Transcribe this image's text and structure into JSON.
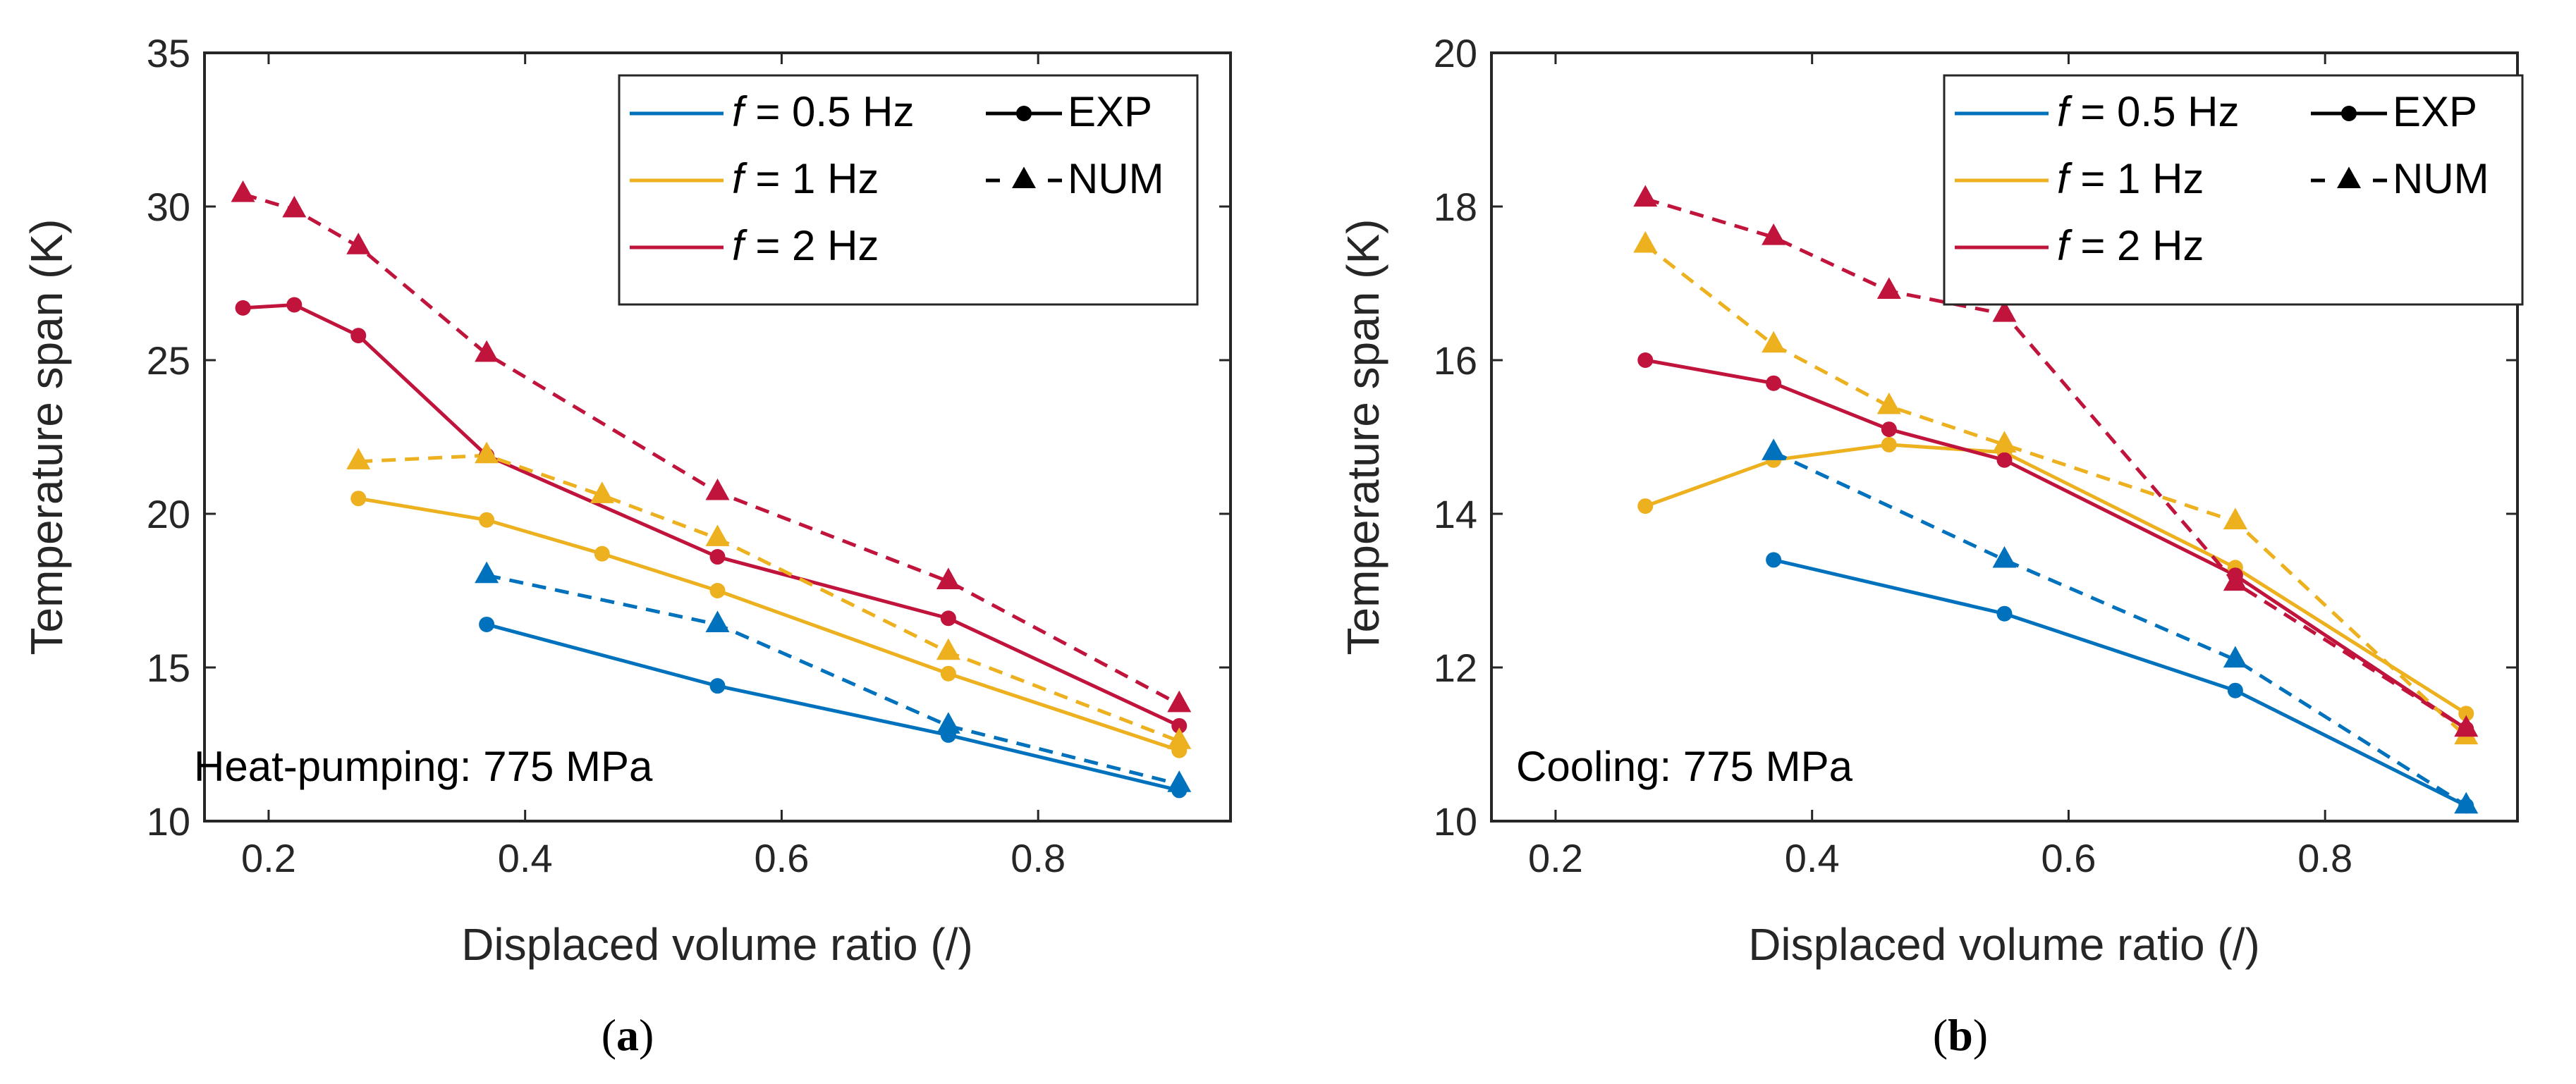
{
  "chart_data": [
    {
      "type": "line",
      "panel_label": "(a)",
      "panel_letter": "a",
      "annotation": "Heat-pumping: 775 MPa",
      "xlabel": "Displaced volume ratio (/)",
      "ylabel": "Temperature span (K)",
      "xlim": [
        0.15,
        0.95
      ],
      "ylim": [
        10,
        35
      ],
      "xticks": [
        "0.2",
        "0.4",
        "0.6",
        "0.8"
      ],
      "xtick_values": [
        0.2,
        0.4,
        0.6,
        0.8
      ],
      "yticks": [
        "10",
        "15",
        "20",
        "25",
        "30",
        "35"
      ],
      "ytick_values": [
        10,
        15,
        20,
        25,
        30,
        35
      ],
      "legend": {
        "freq": [
          {
            "prefix": "f",
            "text": " = 0.5 Hz",
            "color": "#0072BD"
          },
          {
            "prefix": "f",
            "text": " = 1 Hz",
            "color": "#EDB120"
          },
          {
            "prefix": "f",
            "text": " = 2 Hz",
            "color": "#C0143C"
          }
        ],
        "style": [
          {
            "label": "EXP",
            "line": "solid",
            "marker": "circle"
          },
          {
            "label": "NUM",
            "line": "dashed",
            "marker": "triangle"
          }
        ]
      },
      "series": [
        {
          "name": "f = 0.5 Hz EXP",
          "color": "#0072BD",
          "dash": false,
          "marker": "circle",
          "x": [
            0.37,
            0.55,
            0.73,
            0.91
          ],
          "y": [
            16.4,
            14.4,
            12.8,
            11.0
          ]
        },
        {
          "name": "f = 1 Hz EXP",
          "color": "#EDB120",
          "dash": false,
          "marker": "circle",
          "x": [
            0.27,
            0.37,
            0.46,
            0.55,
            0.73,
            0.91
          ],
          "y": [
            20.5,
            19.8,
            18.7,
            17.5,
            14.8,
            12.3
          ]
        },
        {
          "name": "f = 2 Hz EXP",
          "color": "#C0143C",
          "dash": false,
          "marker": "circle",
          "x": [
            0.18,
            0.22,
            0.27,
            0.37,
            0.55,
            0.73,
            0.91
          ],
          "y": [
            26.7,
            26.8,
            25.8,
            21.9,
            18.6,
            16.6,
            13.1
          ]
        },
        {
          "name": "f = 0.5 Hz NUM",
          "color": "#0072BD",
          "dash": true,
          "marker": "triangle",
          "x": [
            0.37,
            0.55,
            0.73,
            0.91
          ],
          "y": [
            18.0,
            16.4,
            13.1,
            11.2
          ]
        },
        {
          "name": "f = 1 Hz NUM",
          "color": "#EDB120",
          "dash": true,
          "marker": "triangle",
          "x": [
            0.27,
            0.37,
            0.46,
            0.55,
            0.73,
            0.91
          ],
          "y": [
            21.7,
            21.9,
            20.6,
            19.2,
            15.5,
            12.6
          ]
        },
        {
          "name": "f = 2 Hz NUM",
          "color": "#C0143C",
          "dash": true,
          "marker": "triangle",
          "x": [
            0.18,
            0.22,
            0.27,
            0.37,
            0.55,
            0.73,
            0.91
          ],
          "y": [
            30.4,
            29.9,
            28.7,
            25.2,
            20.7,
            17.8,
            13.8
          ]
        }
      ]
    },
    {
      "type": "line",
      "panel_label": "(b)",
      "panel_letter": "b",
      "annotation": "Cooling: 775 MPa",
      "xlabel": "Displaced volume ratio (/)",
      "ylabel": "Temperature span (K)",
      "xlim": [
        0.15,
        0.95
      ],
      "ylim": [
        10,
        20
      ],
      "xticks": [
        "0.2",
        "0.4",
        "0.6",
        "0.8"
      ],
      "xtick_values": [
        0.2,
        0.4,
        0.6,
        0.8
      ],
      "yticks": [
        "10",
        "12",
        "14",
        "16",
        "18",
        "20"
      ],
      "ytick_values": [
        10,
        12,
        14,
        16,
        18,
        20
      ],
      "legend": {
        "freq": [
          {
            "prefix": "f",
            "text": " = 0.5 Hz",
            "color": "#0072BD"
          },
          {
            "prefix": "f",
            "text": " = 1 Hz",
            "color": "#EDB120"
          },
          {
            "prefix": "f",
            "text": " = 2 Hz",
            "color": "#C0143C"
          }
        ],
        "style": [
          {
            "label": "EXP",
            "line": "solid",
            "marker": "circle"
          },
          {
            "label": "NUM",
            "line": "dashed",
            "marker": "triangle"
          }
        ]
      },
      "series": [
        {
          "name": "f = 0.5 Hz EXP",
          "color": "#0072BD",
          "dash": false,
          "marker": "circle",
          "x": [
            0.37,
            0.55,
            0.73,
            0.91
          ],
          "y": [
            13.4,
            12.7,
            11.7,
            10.2
          ]
        },
        {
          "name": "f = 1 Hz EXP",
          "color": "#EDB120",
          "dash": false,
          "marker": "circle",
          "x": [
            0.27,
            0.37,
            0.46,
            0.55,
            0.73,
            0.91
          ],
          "y": [
            14.1,
            14.7,
            14.9,
            14.8,
            13.3,
            11.4
          ]
        },
        {
          "name": "f = 2 Hz EXP",
          "color": "#C0143C",
          "dash": false,
          "marker": "circle",
          "x": [
            0.27,
            0.37,
            0.46,
            0.55,
            0.73,
            0.91
          ],
          "y": [
            16.0,
            15.7,
            15.1,
            14.7,
            13.2,
            11.2
          ]
        },
        {
          "name": "f = 0.5 Hz NUM",
          "color": "#0072BD",
          "dash": true,
          "marker": "triangle",
          "x": [
            0.37,
            0.55,
            0.73,
            0.91
          ],
          "y": [
            14.8,
            13.4,
            12.1,
            10.2
          ]
        },
        {
          "name": "f = 1 Hz NUM",
          "color": "#EDB120",
          "dash": true,
          "marker": "triangle",
          "x": [
            0.27,
            0.37,
            0.46,
            0.55,
            0.73,
            0.91
          ],
          "y": [
            17.5,
            16.2,
            15.4,
            14.9,
            13.9,
            11.1
          ]
        },
        {
          "name": "f = 2 Hz NUM",
          "color": "#C0143C",
          "dash": true,
          "marker": "triangle",
          "x": [
            0.27,
            0.37,
            0.46,
            0.55,
            0.73,
            0.91
          ],
          "y": [
            18.1,
            17.6,
            16.9,
            16.6,
            13.1,
            11.2
          ]
        }
      ]
    }
  ]
}
